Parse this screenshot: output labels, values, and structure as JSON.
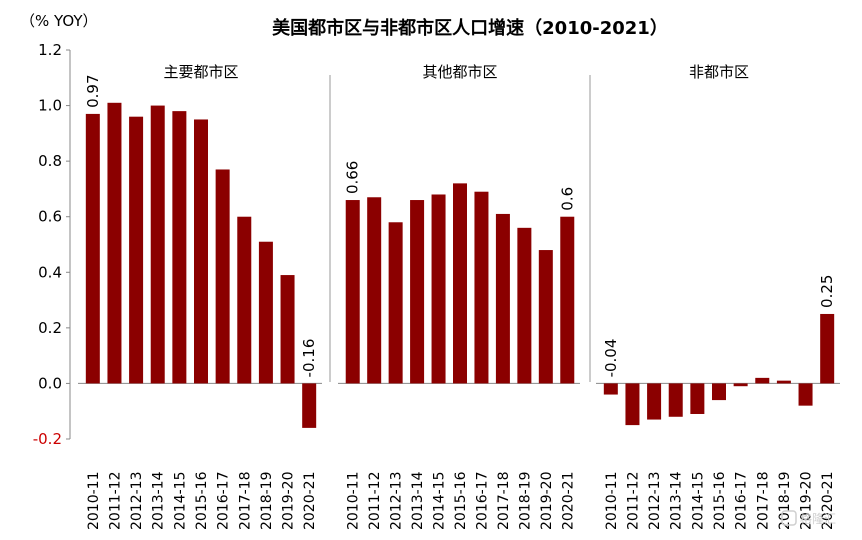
{
  "chart_data": {
    "type": "bar",
    "title": "美国都市区与非都市区人口增速（2010-2021）",
    "unit_label": "（% YOY）",
    "ylim": [
      -0.2,
      1.2
    ],
    "yticks": [
      "1.2",
      "1.0",
      "0.8",
      "0.6",
      "0.4",
      "0.2",
      "0.0",
      "-0.2"
    ],
    "ytick_values": [
      1.2,
      1.0,
      0.8,
      0.6,
      0.4,
      0.2,
      0.0,
      -0.2
    ],
    "grid": false,
    "categories": [
      "2010-11",
      "2011-12",
      "2012-13",
      "2013-14",
      "2014-15",
      "2015-16",
      "2016-17",
      "2017-18",
      "2018-19",
      "2019-20",
      "2020-21"
    ],
    "bar_color": "#8B0000",
    "negative_tick_color": "#cc0000",
    "panels": [
      {
        "name": "主要都市区",
        "values": [
          0.97,
          1.01,
          0.96,
          1.0,
          0.98,
          0.95,
          0.77,
          0.6,
          0.51,
          0.39,
          -0.16
        ],
        "labels": [
          {
            "index": 0,
            "text": "0.97"
          },
          {
            "index": 10,
            "text": "-0.16"
          }
        ]
      },
      {
        "name": "其他都市区",
        "values": [
          0.66,
          0.67,
          0.58,
          0.66,
          0.68,
          0.72,
          0.69,
          0.61,
          0.56,
          0.48,
          0.6
        ],
        "labels": [
          {
            "index": 0,
            "text": "0.66"
          },
          {
            "index": 10,
            "text": "0.6"
          }
        ]
      },
      {
        "name": "非都市区",
        "values": [
          -0.04,
          -0.15,
          -0.13,
          -0.12,
          -0.11,
          -0.06,
          -0.01,
          0.02,
          0.01,
          -0.08,
          0.25
        ],
        "labels": [
          {
            "index": 0,
            "text": "-0.04"
          },
          {
            "index": 10,
            "text": "0.25"
          }
        ]
      }
    ]
  },
  "watermark": "格隆汇"
}
